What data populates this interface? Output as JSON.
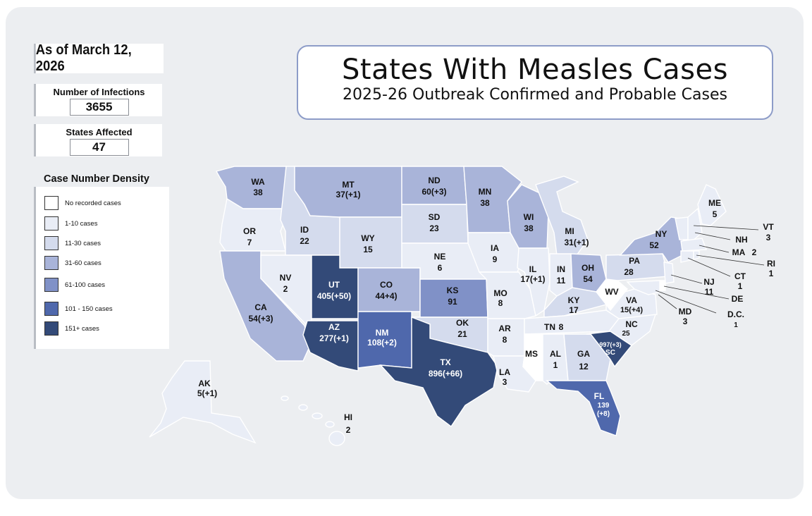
{
  "header": {
    "date": "As of March 12, 2026",
    "title": "States With Measles Cases",
    "subtitle": "2025-26 Outbreak Confirmed and Probable Cases"
  },
  "stats": {
    "infections_label": "Number of Infections",
    "infections_value": "3655",
    "states_label": "States Affected",
    "states_value": "47"
  },
  "legend": {
    "title": "Case Number Density",
    "items": [
      {
        "label": "No recorded cases",
        "color": "#ffffff"
      },
      {
        "label": "1-10 cases",
        "color": "#e9edf6"
      },
      {
        "label": "11-30 cases",
        "color": "#d4dbed"
      },
      {
        "label": "31-60 cases",
        "color": "#a9b4d9"
      },
      {
        "label": "61-100 cases",
        "color": "#8091c7"
      },
      {
        "label": "101 - 150 cases",
        "color": "#4f68ac"
      },
      {
        "label": "151+ cases",
        "color": "#334a78"
      }
    ]
  },
  "states": {
    "WA": {
      "abbr": "WA",
      "count": "38"
    },
    "OR": {
      "abbr": "OR",
      "count": "7"
    },
    "CA": {
      "abbr": "CA",
      "count": "54(+3)"
    },
    "ID": {
      "abbr": "ID",
      "count": "22"
    },
    "NV": {
      "abbr": "NV",
      "count": "2"
    },
    "MT": {
      "abbr": "MT",
      "count": "37(+1)"
    },
    "WY": {
      "abbr": "WY",
      "count": "15"
    },
    "UT": {
      "abbr": "UT",
      "count": "405(+50)"
    },
    "AZ": {
      "abbr": "AZ",
      "count": "277(+1)"
    },
    "CO": {
      "abbr": "CO",
      "count": "44+4)"
    },
    "NM": {
      "abbr": "NM",
      "count": "108(+2)"
    },
    "ND": {
      "abbr": "ND",
      "count": "60(+3)"
    },
    "SD": {
      "abbr": "SD",
      "count": "23"
    },
    "NE": {
      "abbr": "NE",
      "count": "6"
    },
    "KS": {
      "abbr": "KS",
      "count": "91"
    },
    "OK": {
      "abbr": "OK",
      "count": "21"
    },
    "TX": {
      "abbr": "TX",
      "count": "896(+66)"
    },
    "MN": {
      "abbr": "MN",
      "count": "38"
    },
    "IA": {
      "abbr": "IA",
      "count": "9"
    },
    "MO": {
      "abbr": "MO",
      "count": "8"
    },
    "AR": {
      "abbr": "AR",
      "count": "8"
    },
    "LA": {
      "abbr": "LA",
      "count": "3"
    },
    "WI": {
      "abbr": "WI",
      "count": "38"
    },
    "IL": {
      "abbr": "IL",
      "count": "17(+1)"
    },
    "MI": {
      "abbr": "MI",
      "count": "31(+1)"
    },
    "IN": {
      "abbr": "IN",
      "count": "11"
    },
    "OH": {
      "abbr": "OH",
      "count": "54"
    },
    "KY": {
      "abbr": "KY",
      "count": "17"
    },
    "TN": {
      "abbr": "TN",
      "count": "8"
    },
    "MS": {
      "abbr": "MS",
      "count": ""
    },
    "AL": {
      "abbr": "AL",
      "count": "1"
    },
    "GA": {
      "abbr": "GA",
      "count": "12"
    },
    "FL": {
      "abbr": "FL",
      "count": "139",
      "count2": "(+8)"
    },
    "SC": {
      "abbr": "SC",
      "count": "997(+3)"
    },
    "NC": {
      "abbr": "NC",
      "count": "25"
    },
    "VA": {
      "abbr": "VA",
      "count": "15(+4)"
    },
    "WV": {
      "abbr": "WV",
      "count": ""
    },
    "PA": {
      "abbr": "PA",
      "count": "28"
    },
    "NY": {
      "abbr": "NY",
      "count": "52"
    },
    "ME": {
      "abbr": "ME",
      "count": "5"
    },
    "VT": {
      "abbr": "VT",
      "count": "3"
    },
    "NH": {
      "abbr": "NH",
      "count": ""
    },
    "MA": {
      "abbr": "MA",
      "count": "2"
    },
    "RI": {
      "abbr": "RI",
      "count": "1"
    },
    "CT": {
      "abbr": "CT",
      "count": "1"
    },
    "NJ": {
      "abbr": "NJ",
      "count": "11"
    },
    "DE": {
      "abbr": "DE",
      "count": ""
    },
    "MD": {
      "abbr": "MD",
      "count": "3"
    },
    "DC": {
      "abbr": "D.C.",
      "count": "1"
    },
    "AK": {
      "abbr": "AK",
      "count": "5(+1)"
    },
    "HI": {
      "abbr": "HI",
      "count": "2"
    }
  }
}
